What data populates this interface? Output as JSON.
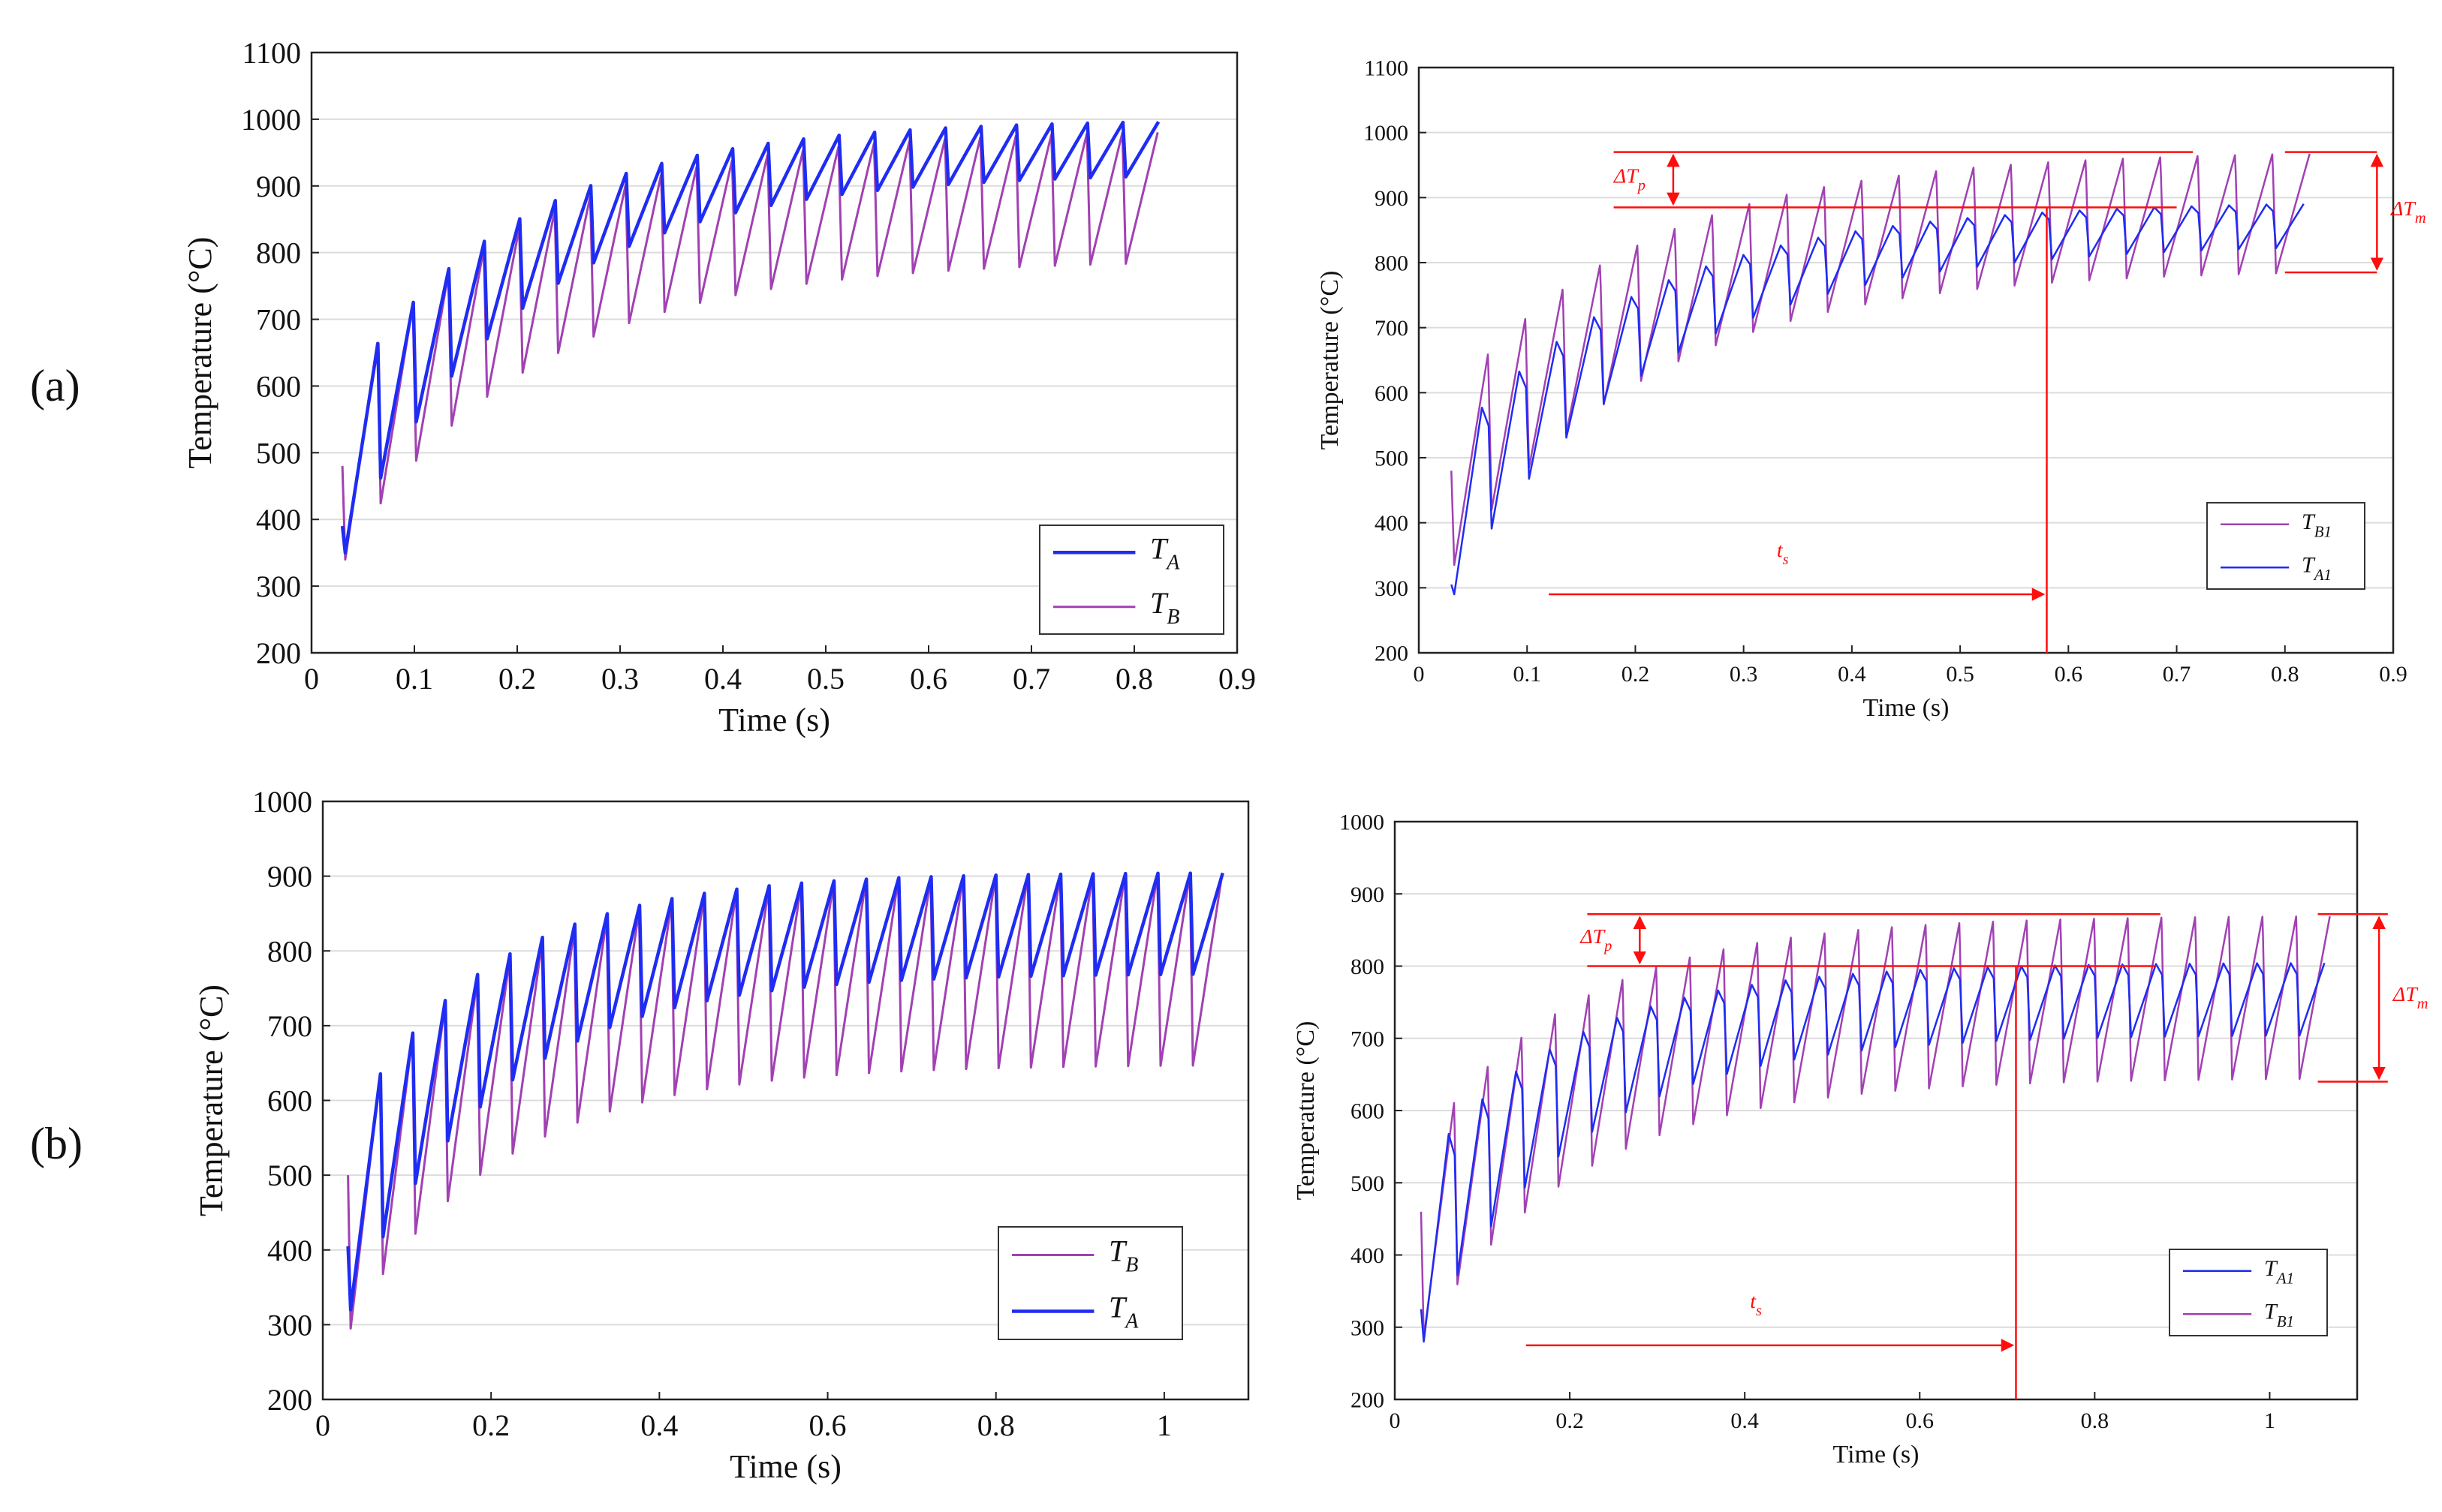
{
  "rows": [
    {
      "label": "(a)"
    },
    {
      "label": "(b)"
    }
  ],
  "colors": {
    "TA": "#1f2cf2",
    "TB": "#a141b3",
    "annot": "#ff0d0d",
    "grid": "#dcdcdc",
    "axis": "#222222"
  },
  "chart_data": [
    {
      "type": "line",
      "id": "a-left",
      "xlabel": "Time (s)",
      "ylabel": "Temperature (°C)",
      "xlim": [
        0,
        0.9
      ],
      "ylim": [
        200,
        1100
      ],
      "xticks": [
        0,
        0.1,
        0.2,
        0.3,
        0.4,
        0.5,
        0.6,
        0.7,
        0.8,
        0.9
      ],
      "xtick_labels": [
        "0",
        "0.1",
        "0.2",
        "0.3",
        "0.4",
        "0.5",
        "0.6",
        "0.7",
        "0.8",
        "0.9"
      ],
      "yticks": [
        200,
        300,
        400,
        500,
        600,
        700,
        800,
        900,
        1000,
        1100
      ],
      "ytick_labels": [
        "200",
        "300",
        "400",
        "500",
        "600",
        "700",
        "800",
        "900",
        "1000",
        "1100"
      ],
      "grid": "horizontal",
      "legend_position": "bottom-right",
      "period": 0.0345,
      "t_start": 0.03,
      "t_end": 0.835,
      "series": [
        {
          "name": "T",
          "sub": "A",
          "color": "TA",
          "start": 390,
          "first_min": 350,
          "peak_final": 1000,
          "trough_final": 920,
          "tau": 0.17,
          "peak_phase": 1.0,
          "width": 4.5
        },
        {
          "name": "T",
          "sub": "B",
          "color": "TB",
          "start": 480,
          "first_min": 340,
          "peak_final": 985,
          "trough_final": 790,
          "tau": 0.18,
          "peak_phase": 0.98,
          "width": 3
        }
      ],
      "legend_order": [
        0,
        1
      ]
    },
    {
      "type": "line",
      "id": "a-right",
      "xlabel": "Time (s)",
      "ylabel": "Temperature (°C)",
      "xlim": [
        0,
        0.9
      ],
      "ylim": [
        200,
        1100
      ],
      "xticks": [
        0,
        0.1,
        0.2,
        0.3,
        0.4,
        0.5,
        0.6,
        0.7,
        0.8,
        0.9
      ],
      "xtick_labels": [
        "0",
        "0.1",
        "0.2",
        "0.3",
        "0.4",
        "0.5",
        "0.6",
        "0.7",
        "0.8",
        "0.9"
      ],
      "yticks": [
        200,
        300,
        400,
        500,
        600,
        700,
        800,
        900,
        1000,
        1100
      ],
      "ytick_labels": [
        "200",
        "300",
        "400",
        "500",
        "600",
        "700",
        "800",
        "900",
        "1000",
        "1100"
      ],
      "grid": "horizontal",
      "legend_position": "bottom-right",
      "period": 0.0345,
      "t_start": 0.03,
      "t_end": 0.835,
      "series": [
        {
          "name": "T",
          "sub": "A1",
          "color": "TA",
          "start": 305,
          "first_min": 290,
          "peak_final": 895,
          "trough_final": 830,
          "tau": 0.18,
          "peak_phase": 0.82,
          "width": 2.5
        },
        {
          "name": "T",
          "sub": "B1",
          "color": "TB",
          "start": 480,
          "first_min": 335,
          "peak_final": 972,
          "trough_final": 790,
          "tau": 0.18,
          "peak_phase": 0.98,
          "width": 2.5
        }
      ],
      "legend_order": [
        1,
        0
      ],
      "annotations": {
        "dTp_label": "ΔT",
        "dTp_sub": "p",
        "dTm_label": "ΔT",
        "dTm_sub": "m",
        "ts_label": "t",
        "ts_sub": "s",
        "level_upper": 970,
        "level_lower": 885,
        "level_bottom": 785,
        "ts_value": 0.58,
        "ts_arrow_from": 0.12,
        "ts_arrow_y": 290,
        "hline_upper_x": [
          0.18,
          0.715
        ],
        "hline_lower_x": [
          0.18,
          0.7
        ],
        "dTp_arrow_x": 0.235,
        "dTm_arrow_x": 0.885,
        "dTm_line_x": [
          0.8,
          0.885
        ]
      }
    },
    {
      "type": "line",
      "id": "b-left",
      "xlabel": "Time (s)",
      "ylabel": "Temperature (°C)",
      "xlim": [
        0,
        1.1
      ],
      "ylim": [
        200,
        1000
      ],
      "xticks": [
        0,
        0.2,
        0.4,
        0.6,
        0.8,
        1.0
      ],
      "xtick_labels": [
        "0",
        "0.2",
        "0.4",
        "0.6",
        "0.8",
        "1"
      ],
      "yticks": [
        200,
        300,
        400,
        500,
        600,
        700,
        800,
        900,
        1000
      ],
      "ytick_labels": [
        "200",
        "300",
        "400",
        "500",
        "600",
        "700",
        "800",
        "900",
        "1000"
      ],
      "grid": "horizontal",
      "legend_position": "bottom-right",
      "period": 0.0385,
      "t_start": 0.03,
      "t_end": 1.07,
      "series": [
        {
          "name": "T",
          "sub": "A",
          "color": "TA",
          "start": 405,
          "first_min": 320,
          "peak_final": 905,
          "trough_final": 770,
          "tau": 0.17,
          "peak_phase": 1.0,
          "width": 4.5
        },
        {
          "name": "T",
          "sub": "B",
          "color": "TB",
          "start": 500,
          "first_min": 295,
          "peak_final": 903,
          "trough_final": 648,
          "tau": 0.18,
          "peak_phase": 0.98,
          "width": 3
        }
      ],
      "legend_order": [
        1,
        0
      ]
    },
    {
      "type": "line",
      "id": "b-right",
      "xlabel": "Time (s)",
      "ylabel": "Temperature (°C)",
      "xlim": [
        0,
        1.1
      ],
      "ylim": [
        200,
        1000
      ],
      "xticks": [
        0,
        0.2,
        0.4,
        0.6,
        0.8,
        1.0
      ],
      "xtick_labels": [
        "0",
        "0.2",
        "0.4",
        "0.6",
        "0.8",
        "1"
      ],
      "yticks": [
        200,
        300,
        400,
        500,
        600,
        700,
        800,
        900,
        1000
      ],
      "ytick_labels": [
        "200",
        "300",
        "400",
        "500",
        "600",
        "700",
        "800",
        "900",
        "1000"
      ],
      "grid": "horizontal",
      "legend_position": "bottom-right",
      "period": 0.0385,
      "t_start": 0.03,
      "t_end": 1.07,
      "series": [
        {
          "name": "T",
          "sub": "A1",
          "color": "TA",
          "start": 325,
          "first_min": 280,
          "peak_final": 805,
          "trough_final": 705,
          "tau": 0.17,
          "peak_phase": 0.82,
          "width": 2.5
        },
        {
          "name": "T",
          "sub": "B1",
          "color": "TB",
          "start": 460,
          "first_min": 285,
          "peak_final": 870,
          "trough_final": 645,
          "tau": 0.18,
          "peak_phase": 0.98,
          "width": 2.5
        }
      ],
      "legend_order": [
        0,
        1
      ],
      "annotations": {
        "dTp_label": "ΔT",
        "dTp_sub": "p",
        "dTm_label": "ΔT",
        "dTm_sub": "m",
        "ts_label": "t",
        "ts_sub": "s",
        "level_upper": 872,
        "level_lower": 800,
        "level_bottom": 640,
        "ts_value": 0.71,
        "ts_arrow_from": 0.15,
        "ts_arrow_y": 275,
        "hline_upper_x": [
          0.22,
          0.875
        ],
        "hline_lower_x": [
          0.22,
          0.87
        ],
        "dTp_arrow_x": 0.28,
        "dTm_arrow_x": 1.125,
        "dTm_line_x": [
          1.055,
          1.135
        ]
      }
    }
  ]
}
